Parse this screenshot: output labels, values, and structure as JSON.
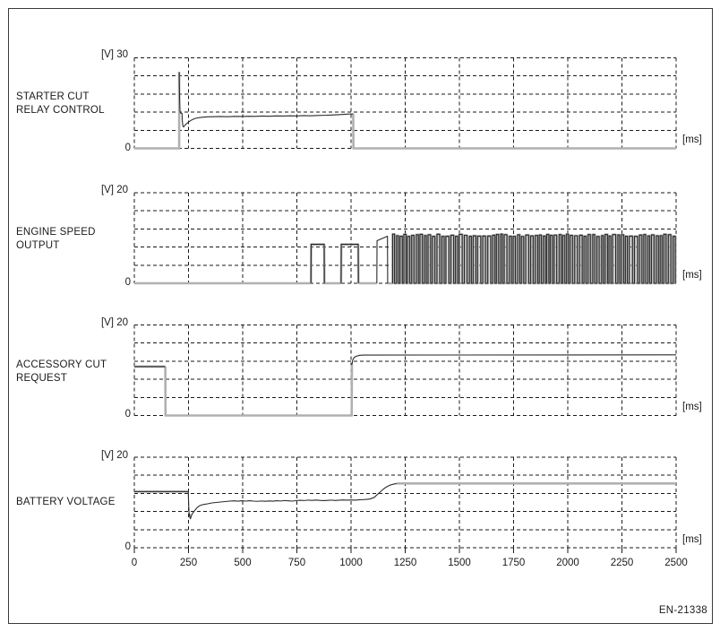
{
  "figure_id": "EN-21338",
  "chart_data": [
    {
      "type": "line",
      "title": "STARTER CUT RELAY CONTROL",
      "title_lines": [
        "STARTER CUT",
        "RELAY CONTROL"
      ],
      "y_unit_label": "[V] 30",
      "y_zero_label": "0",
      "x_unit_label": "[ms]",
      "ylabel": "[V]",
      "xlabel": "[ms]",
      "ylim": [
        0,
        30
      ],
      "xlim": [
        0,
        2500
      ],
      "grid": {
        "rows": 5,
        "cols": 10,
        "x_step_ms": 250,
        "y_step_v": 6,
        "style": "dashed"
      },
      "segments": [
        {
          "mode": "gray",
          "points": [
            [
              0,
              0
            ],
            [
              207,
              0
            ],
            [
              207,
              25.3
            ]
          ]
        },
        {
          "mode": "black",
          "points": [
            [
              207,
              25.3
            ],
            [
              209,
              16
            ],
            [
              211,
              12.2
            ],
            [
              213,
              11.7
            ],
            [
              220,
              11.6
            ],
            [
              221,
              9.5
            ],
            [
              224,
              7.4
            ],
            [
              227,
              7.1
            ],
            [
              233,
              7.6
            ],
            [
              241,
              8.2
            ],
            [
              250,
              8.7
            ],
            [
              262,
              9.3
            ],
            [
              276,
              9.8
            ],
            [
              292,
              10.1
            ],
            [
              312,
              10.3
            ],
            [
              336,
              10.45
            ],
            [
              364,
              10.5
            ],
            [
              396,
              10.55
            ],
            [
              430,
              10.5
            ],
            [
              462,
              10.6
            ],
            [
              494,
              10.55
            ],
            [
              526,
              10.65
            ],
            [
              558,
              10.6
            ],
            [
              590,
              10.7
            ],
            [
              622,
              10.65
            ],
            [
              654,
              10.75
            ],
            [
              686,
              10.7
            ],
            [
              718,
              10.8
            ],
            [
              750,
              10.75
            ],
            [
              782,
              10.85
            ],
            [
              814,
              10.8
            ],
            [
              846,
              10.9
            ],
            [
              878,
              10.95
            ],
            [
              910,
              11.05
            ],
            [
              942,
              11.15
            ],
            [
              974,
              11.3
            ],
            [
              1000,
              11.4
            ],
            [
              1010,
              11.45
            ]
          ]
        },
        {
          "mode": "gray",
          "points": [
            [
              1010,
              11.45
            ],
            [
              1011,
              0
            ],
            [
              2500,
              0
            ]
          ]
        }
      ]
    },
    {
      "type": "line",
      "title": "ENGINE SPEED OUTPUT",
      "title_lines": [
        "ENGINE SPEED",
        "OUTPUT"
      ],
      "y_unit_label": "[V] 20",
      "y_zero_label": "0",
      "x_unit_label": "[ms]",
      "ylabel": "[V]",
      "xlabel": "[ms]",
      "ylim": [
        0,
        20
      ],
      "xlim": [
        0,
        2500
      ],
      "grid": {
        "rows": 5,
        "cols": 10,
        "x_step_ms": 250,
        "y_step_v": 4,
        "style": "dashed"
      },
      "segments": [
        {
          "mode": "gray",
          "points": [
            [
              0,
              0
            ],
            [
              815,
              0
            ]
          ]
        },
        {
          "mode": "both",
          "points": [
            [
              815,
              0
            ],
            [
              816,
              8.6
            ],
            [
              876,
              8.6
            ],
            [
              877,
              0
            ]
          ]
        },
        {
          "mode": "gray",
          "points": [
            [
              877,
              0
            ],
            [
              954,
              0
            ]
          ]
        },
        {
          "mode": "both",
          "points": [
            [
              954,
              0
            ],
            [
              955,
              8.6
            ],
            [
              1033,
              8.6
            ],
            [
              1034,
              0
            ]
          ]
        },
        {
          "mode": "gray",
          "points": [
            [
              1034,
              0
            ],
            [
              1119,
              0
            ]
          ]
        },
        {
          "mode": "black",
          "points": [
            [
              1119,
              0
            ],
            [
              1120,
              9.4
            ],
            [
              1168,
              10.4
            ],
            [
              1169,
              0
            ]
          ]
        },
        {
          "mode": "gray",
          "points": [
            [
              1169,
              0
            ],
            [
              1192,
              0
            ]
          ]
        },
        {
          "mode": "both",
          "generator": {
            "kind": "pulse-train",
            "start": 1192,
            "end": 2500,
            "period_ms": 20,
            "duty": 0.55,
            "high_v": 10.6,
            "low_v": 0,
            "jitter": 0.4,
            "seed": 9
          }
        }
      ]
    },
    {
      "type": "line",
      "title": "ACCESSORY CUT REQUEST",
      "title_lines": [
        "ACCESSORY CUT",
        "REQUEST"
      ],
      "y_unit_label": "[V] 20",
      "y_zero_label": "0",
      "x_unit_label": "[ms]",
      "ylabel": "[V]",
      "xlabel": "[ms]",
      "ylim": [
        0,
        20
      ],
      "xlim": [
        0,
        2500
      ],
      "grid": {
        "rows": 5,
        "cols": 10,
        "x_step_ms": 250,
        "y_step_v": 4,
        "style": "dashed"
      },
      "segments": [
        {
          "mode": "both",
          "points": [
            [
              0,
              10.8
            ],
            [
              143,
              10.8
            ]
          ]
        },
        {
          "mode": "gray",
          "points": [
            [
              143,
              10.8
            ],
            [
              144,
              0
            ],
            [
              1003,
              0
            ],
            [
              1004,
              11.2
            ]
          ]
        },
        {
          "mode": "black",
          "points": [
            [
              1004,
              11.2
            ],
            [
              1008,
              12.3
            ],
            [
              1014,
              12.8
            ],
            [
              1024,
              13.1
            ],
            [
              1040,
              13.3
            ],
            [
              1060,
              13.35
            ],
            [
              2500,
              13.4
            ]
          ]
        }
      ]
    },
    {
      "type": "line",
      "title": "BATTERY VOLTAGE",
      "title_lines": [
        "BATTERY VOLTAGE"
      ],
      "y_unit_label": "[V] 20",
      "y_zero_label": "0",
      "x_unit_label": "[ms]",
      "ylabel": "[V]",
      "xlabel": "[ms]",
      "ylim": [
        0,
        20
      ],
      "xlim": [
        0,
        2500
      ],
      "grid": {
        "rows": 5,
        "cols": 10,
        "x_step_ms": 250,
        "y_step_v": 4,
        "style": "dashed"
      },
      "x_tick_labels": [
        "0",
        "250",
        "500",
        "750",
        "1000",
        "1250",
        "1500",
        "1750",
        "2000",
        "2250",
        "2500"
      ],
      "has_bottom_ticks": true,
      "segments": [
        {
          "mode": "both",
          "points": [
            [
              0,
              12.4
            ],
            [
              247,
              12.4
            ]
          ]
        },
        {
          "mode": "black",
          "points": [
            [
              247,
              12.4
            ],
            [
              249,
              12.3
            ],
            [
              251,
              9.2
            ],
            [
              253,
              7.0
            ],
            [
              255,
              7.5
            ],
            [
              257,
              6.6
            ],
            [
              259,
              6.4
            ],
            [
              262,
              6.9
            ],
            [
              266,
              7.4
            ],
            [
              272,
              7.8
            ],
            [
              280,
              8.3
            ],
            [
              290,
              8.9
            ],
            [
              302,
              9.3
            ],
            [
              318,
              9.55
            ],
            [
              338,
              9.7
            ],
            [
              358,
              9.9
            ],
            [
              378,
              10.0
            ],
            [
              398,
              10.1
            ],
            [
              418,
              10.2
            ],
            [
              440,
              10.3
            ],
            [
              460,
              10.35
            ],
            [
              478,
              10.28
            ],
            [
              496,
              10.38
            ],
            [
              514,
              10.3
            ],
            [
              532,
              10.38
            ],
            [
              550,
              10.3
            ],
            [
              568,
              10.25
            ],
            [
              586,
              10.32
            ],
            [
              604,
              10.26
            ],
            [
              622,
              10.33
            ],
            [
              640,
              10.28
            ],
            [
              658,
              10.38
            ],
            [
              676,
              10.32
            ],
            [
              694,
              10.42
            ],
            [
              712,
              10.36
            ],
            [
              730,
              10.3
            ],
            [
              748,
              10.42
            ],
            [
              766,
              10.48
            ],
            [
              784,
              10.42
            ],
            [
              802,
              10.52
            ],
            [
              820,
              10.46
            ],
            [
              838,
              10.54
            ],
            [
              856,
              10.46
            ],
            [
              874,
              10.4
            ],
            [
              892,
              10.46
            ],
            [
              910,
              10.52
            ],
            [
              928,
              10.44
            ],
            [
              946,
              10.5
            ],
            [
              964,
              10.55
            ],
            [
              982,
              10.5
            ],
            [
              1000,
              10.55
            ],
            [
              1018,
              10.5
            ],
            [
              1036,
              10.58
            ],
            [
              1054,
              10.62
            ],
            [
              1072,
              10.68
            ],
            [
              1088,
              10.78
            ],
            [
              1098,
              10.95
            ],
            [
              1108,
              11.15
            ],
            [
              1120,
              11.7
            ],
            [
              1134,
              12.3
            ],
            [
              1148,
              12.9
            ],
            [
              1162,
              13.4
            ],
            [
              1176,
              13.75
            ],
            [
              1190,
              13.98
            ],
            [
              1202,
              14.1
            ],
            [
              1212,
              14.2
            ]
          ]
        },
        {
          "mode": "gray",
          "points": [
            [
              1212,
              14.2
            ],
            [
              2500,
              14.2
            ]
          ]
        }
      ]
    }
  ],
  "colors": {
    "grid_line": "#1a1a1a",
    "trace_black": "#2a2a2a",
    "trace_gray": "#b0b0b0",
    "background": "#ffffff",
    "border": "#3a3a3a"
  }
}
